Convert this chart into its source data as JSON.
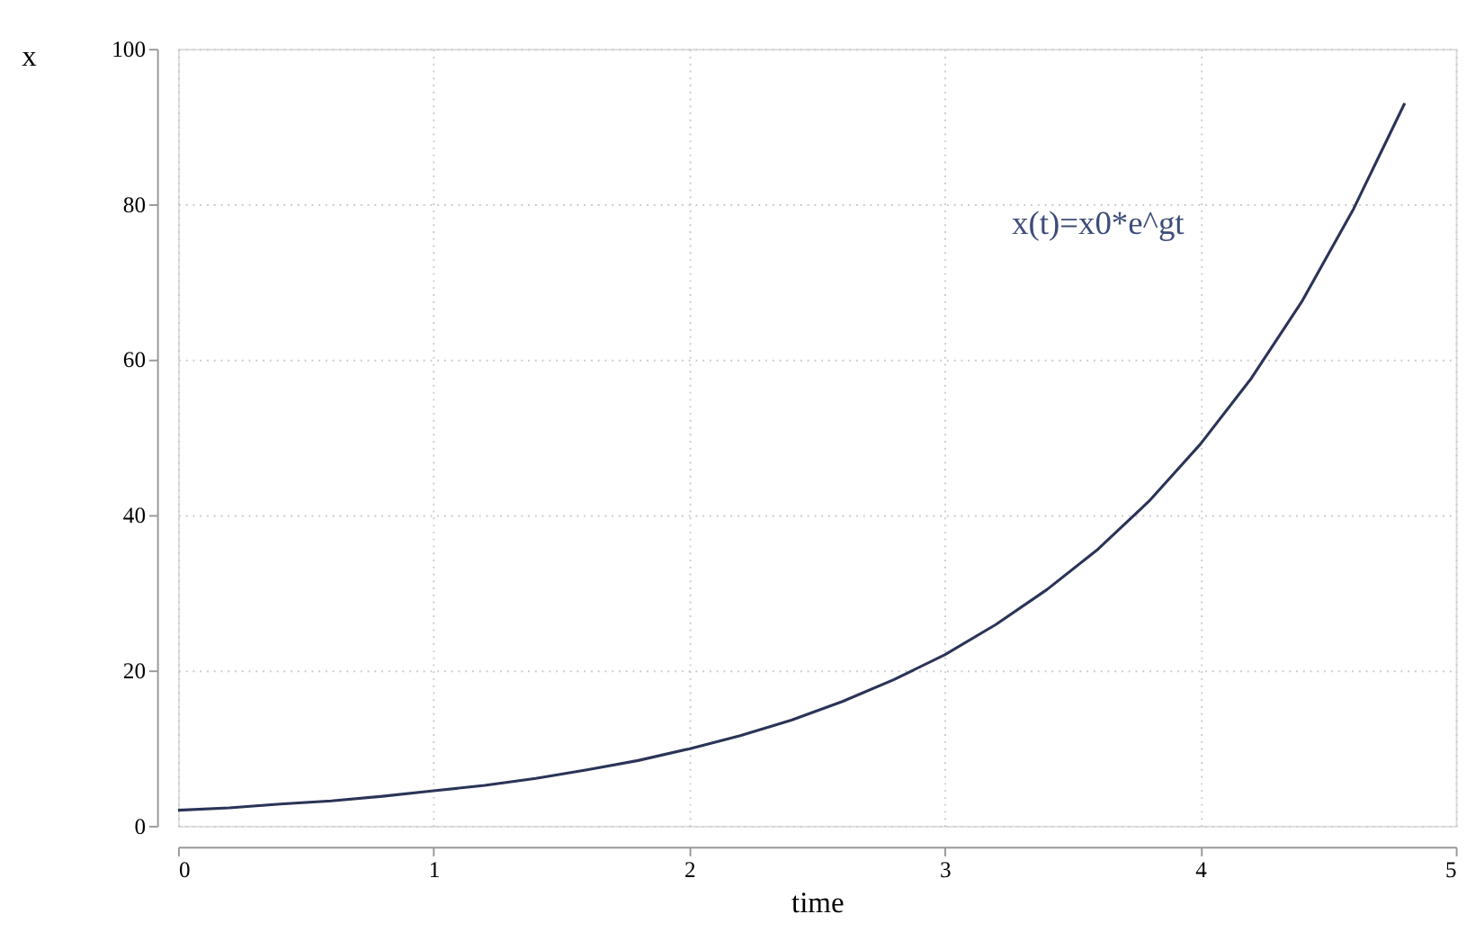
{
  "chart_data": {
    "type": "line",
    "xlabel": "time",
    "ylabel": "x",
    "x": [
      0,
      0.2,
      0.4,
      0.6,
      0.8,
      1,
      1.2,
      1.4,
      1.6,
      1.8,
      2,
      2.2,
      2.4,
      2.6,
      2.8,
      3,
      3.2,
      3.4,
      3.6,
      3.8,
      4,
      4.2,
      4.4,
      4.6,
      4.8
    ],
    "series": [
      {
        "color": "#2a3457",
        "values": [
          2,
          2.3,
          2.8,
          3.2,
          3.8,
          4.5,
          5.2,
          6.1,
          7.2,
          8.4,
          9.9,
          11.6,
          13.6,
          16,
          18.8,
          22,
          25.9,
          30.4,
          35.6,
          41.8,
          49.1,
          57.6,
          67.6,
          79.4,
          93
        ]
      }
    ],
    "annotations": [
      "x(t)=x0*e^gt"
    ],
    "xlim": [
      0,
      5
    ],
    "ylim": [
      0,
      100
    ],
    "xticks": [
      0,
      1,
      2,
      3,
      4,
      5
    ],
    "yticks": [
      0,
      20,
      40,
      60,
      80,
      100
    ],
    "grid": true,
    "marker": "none",
    "line_style": "solid"
  }
}
